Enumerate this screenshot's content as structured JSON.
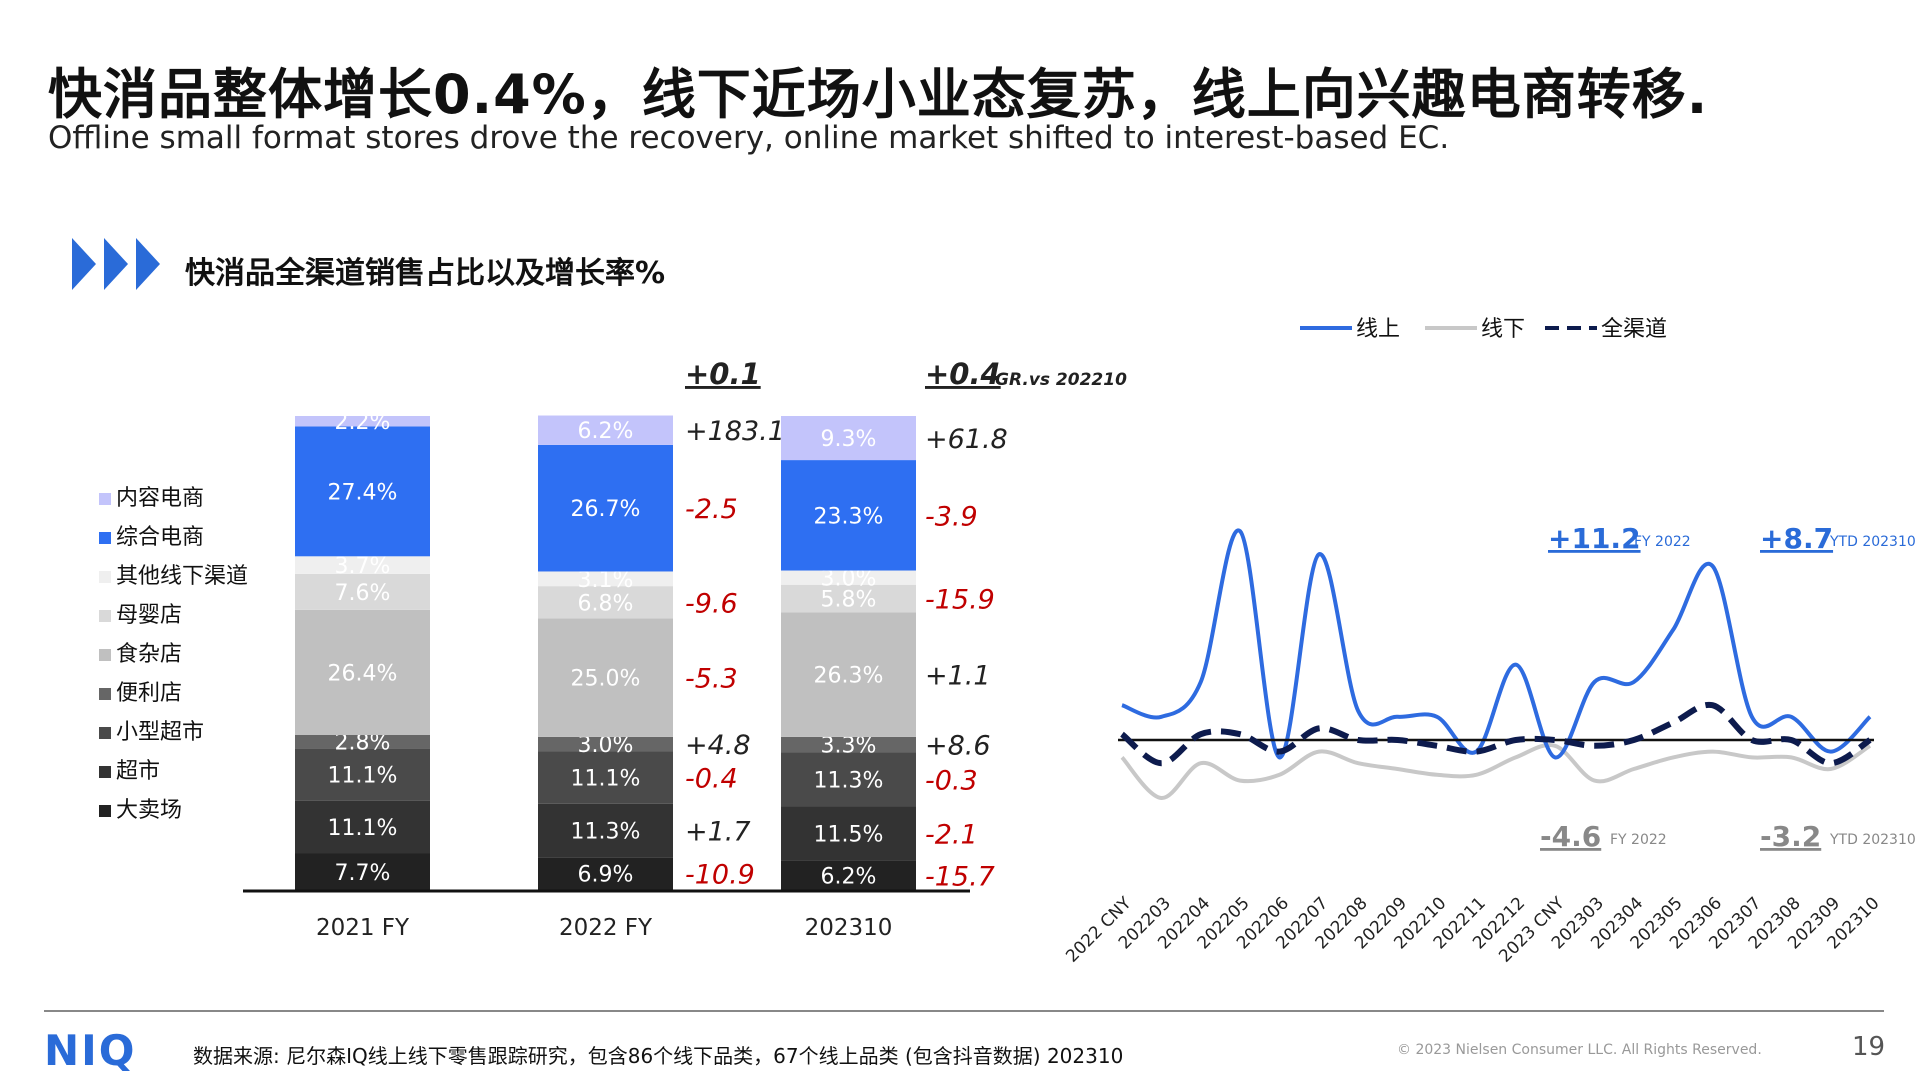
{
  "header": {
    "title": "快消品整体增长0.4%，线下近场小业态复苏，线上向兴趣电商转移.",
    "subtitle": "Offline small format stores drove the recovery, online market shifted to interest-based EC.",
    "section_title": "快消品全渠道销售占比以及增长率%"
  },
  "colors": {
    "accent": "#2a6bd8",
    "negative": "#c00000",
    "dark": "#0d1b4d"
  },
  "chart_data": [
    {
      "type": "bar",
      "subtype": "stacked-100",
      "categories": [
        "2021 FY",
        "2022 FY",
        "202310"
      ],
      "legend": [
        "内容电商",
        "综合电商",
        "其他线下渠道",
        "母婴店",
        "食杂店",
        "便利店",
        "小型超市",
        "超市",
        "大卖场"
      ],
      "series": [
        {
          "name": "大卖场",
          "color": "#222222",
          "values": [
            7.7,
            6.9,
            6.2
          ],
          "growth": [
            "-10.9",
            "-15.7"
          ]
        },
        {
          "name": "超市",
          "color": "#333333",
          "values": [
            11.1,
            11.3,
            11.5
          ],
          "growth": [
            "+1.7",
            "-2.1"
          ]
        },
        {
          "name": "小型超市",
          "color": "#4a4a4a",
          "values": [
            11.1,
            11.1,
            11.3
          ],
          "growth": [
            "-0.4",
            "-0.3"
          ]
        },
        {
          "name": "便利店",
          "color": "#666666",
          "values": [
            2.8,
            3.0,
            3.3
          ],
          "growth": [
            "+4.8",
            "+8.6"
          ]
        },
        {
          "name": "食杂店",
          "color": "#c0c0c0",
          "values": [
            26.4,
            25.0,
            26.3
          ],
          "growth": [
            "-5.3",
            "+1.1"
          ]
        },
        {
          "name": "母婴店",
          "color": "#d9d9d9",
          "values": [
            7.6,
            6.8,
            5.8
          ],
          "growth": [
            "-9.6",
            "-15.9"
          ]
        },
        {
          "name": "其他线下渠道",
          "color": "#efefef",
          "values": [
            3.7,
            3.1,
            3.0
          ],
          "growth": [
            "",
            ""
          ]
        },
        {
          "name": "综合电商",
          "color": "#2e6ff2",
          "values": [
            27.4,
            26.7,
            23.3
          ],
          "growth": [
            "-2.5",
            "-3.9"
          ]
        },
        {
          "name": "内容电商",
          "color": "#c3c4fb",
          "values": [
            2.2,
            6.2,
            9.3
          ],
          "growth": [
            "+183.1",
            "+61.8"
          ]
        }
      ],
      "total_growth": [
        "+0.1",
        "+0.4"
      ],
      "total_growth_note": "GR.vs 202210"
    },
    {
      "type": "line",
      "x": [
        "2022 CNY",
        "202203",
        "202204",
        "202205",
        "202206",
        "202207",
        "202208",
        "202209",
        "202210",
        "202211",
        "202212",
        "2023 CNY",
        "202303",
        "202304",
        "202305",
        "202306",
        "202307",
        "202308",
        "202309",
        "202310"
      ],
      "series": [
        {
          "name": "线上",
          "color": "#2e6be0",
          "style": "solid",
          "values": [
            6,
            4,
            10,
            36,
            -3,
            32,
            5,
            4,
            4,
            -2,
            13,
            -3,
            10,
            10,
            19,
            30,
            4,
            4,
            -2,
            4
          ]
        },
        {
          "name": "线下",
          "color": "#c8c8c8",
          "style": "solid",
          "values": [
            -3,
            -10,
            -4,
            -7,
            -6,
            -2,
            -4,
            -5,
            -6,
            -6,
            -3,
            -1,
            -7,
            -5,
            -3,
            -2,
            -3,
            -3,
            -5,
            -1
          ]
        },
        {
          "name": "全渠道",
          "color": "#0d1b4d",
          "style": "dashed",
          "values": [
            1,
            -4,
            1,
            1,
            -2,
            2,
            0,
            0,
            -1,
            -2,
            0,
            0,
            -1,
            0,
            3,
            6,
            0,
            0,
            -4,
            0
          ]
        }
      ],
      "annotations": [
        {
          "value": "+11.2",
          "note": "FY 2022",
          "color": "#2a6bd8"
        },
        {
          "value": "+8.7",
          "note": "YTD 202310",
          "color": "#2a6bd8"
        },
        {
          "value": "-4.6",
          "note": "FY 2022",
          "color": "#888888"
        },
        {
          "value": "-3.2",
          "note": "YTD 202310",
          "color": "#888888"
        }
      ]
    }
  ],
  "footer": {
    "logo": "NIQ",
    "source": "数据来源: 尼尔森IQ线上线下零售跟踪研究，包含86个线下品类，67个线上品类 (包含抖音数据) 202310",
    "copyright": "© 2023 Nielsen Consumer LLC. All Rights Reserved.",
    "page": "19"
  }
}
